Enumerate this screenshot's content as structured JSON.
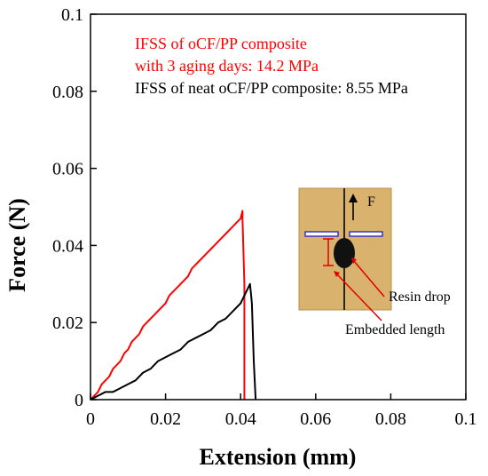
{
  "chart_data": {
    "type": "line",
    "xlabel": "Extension (mm)",
    "ylabel": "Force (N)",
    "xlim": [
      0,
      0.1
    ],
    "ylim": [
      0,
      0.1
    ],
    "x_ticks": [
      "0",
      "0.02",
      "0.04",
      "0.06",
      "0.08",
      "0.1"
    ],
    "y_ticks": [
      "0",
      "0.02",
      "0.04",
      "0.06",
      "0.08",
      "0.1"
    ],
    "grid": false,
    "annotations": [
      {
        "text": "IFSS of oCF/PP composite",
        "color": "#ff0000"
      },
      {
        "text": "with 3 aging days: 14.2 MPa",
        "color": "#ff0000"
      },
      {
        "text": "IFSS of neat oCF/PP composite: 8.55 MPa",
        "color": "#000000"
      }
    ],
    "series": [
      {
        "color": "#ff0000",
        "x": [
          0,
          0.001,
          0.002,
          0.003,
          0.004,
          0.005,
          0.006,
          0.007,
          0.008,
          0.009,
          0.01,
          0.011,
          0.012,
          0.013,
          0.014,
          0.015,
          0.016,
          0.017,
          0.018,
          0.019,
          0.02,
          0.021,
          0.022,
          0.023,
          0.024,
          0.025,
          0.026,
          0.027,
          0.028,
          0.029,
          0.03,
          0.031,
          0.032,
          0.033,
          0.034,
          0.035,
          0.036,
          0.037,
          0.038,
          0.039,
          0.04,
          0.0405,
          0.0405,
          0.041,
          0.041
        ],
        "y": [
          0,
          0.001,
          0.002,
          0.004,
          0.005,
          0.006,
          0.008,
          0.009,
          0.01,
          0.012,
          0.013,
          0.015,
          0.016,
          0.017,
          0.019,
          0.02,
          0.021,
          0.022,
          0.023,
          0.024,
          0.025,
          0.027,
          0.028,
          0.029,
          0.03,
          0.031,
          0.032,
          0.034,
          0.035,
          0.036,
          0.037,
          0.038,
          0.039,
          0.04,
          0.041,
          0.042,
          0.043,
          0.044,
          0.045,
          0.046,
          0.047,
          0.049,
          0.047,
          0.03,
          0
        ]
      },
      {
        "color": "#000000",
        "x": [
          0,
          0.002,
          0.004,
          0.006,
          0.008,
          0.01,
          0.012,
          0.014,
          0.016,
          0.018,
          0.02,
          0.022,
          0.024,
          0.026,
          0.028,
          0.03,
          0.032,
          0.034,
          0.036,
          0.038,
          0.04,
          0.041,
          0.042,
          0.0425,
          0.043,
          0.0435,
          0.044
        ],
        "y": [
          0,
          0.001,
          0.002,
          0.002,
          0.003,
          0.004,
          0.005,
          0.007,
          0.008,
          0.01,
          0.011,
          0.012,
          0.013,
          0.015,
          0.016,
          0.017,
          0.018,
          0.02,
          0.021,
          0.023,
          0.025,
          0.027,
          0.029,
          0.03,
          0.025,
          0.01,
          0
        ]
      }
    ],
    "inset": {
      "labels": [
        "F",
        "Resin drop",
        "Embedded length"
      ],
      "background": "#d9b36e"
    }
  }
}
